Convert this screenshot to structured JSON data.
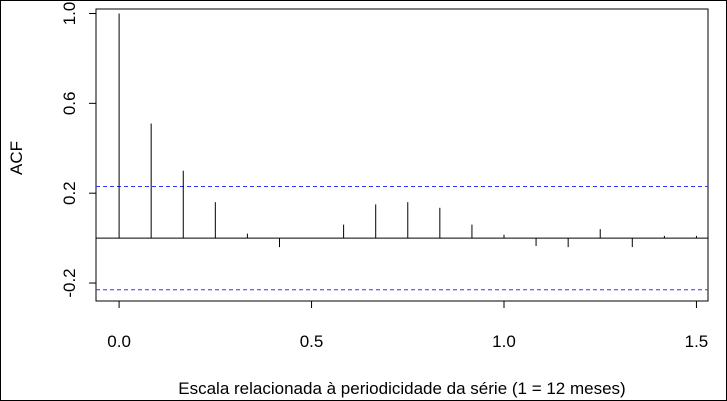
{
  "chart_data": {
    "type": "bar",
    "title": "",
    "xlabel": "Escala relacionada à periodicidade da série (1 = 12 meses)",
    "ylabel": "ACF",
    "xlim": [
      -0.06,
      1.53
    ],
    "ylim": [
      -0.28,
      1.02
    ],
    "x_ticks": [
      0.0,
      0.5,
      1.0,
      1.5
    ],
    "x_tick_labels": [
      "0.0",
      "0.5",
      "1.0",
      "1.5"
    ],
    "y_ticks": [
      -0.2,
      0.2,
      0.6,
      1.0
    ],
    "y_tick_labels": [
      "-0.2",
      "0.2",
      "0.6",
      "1.0"
    ],
    "confidence_bound": 0.23,
    "zero_line": true,
    "grid": false,
    "lags": [
      0.0,
      0.0833,
      0.1667,
      0.25,
      0.3333,
      0.4167,
      0.5,
      0.5833,
      0.6667,
      0.75,
      0.8333,
      0.9167,
      1.0,
      1.0833,
      1.1667,
      1.25,
      1.3333,
      1.4167,
      1.5
    ],
    "acf": [
      1.0,
      0.51,
      0.3,
      0.16,
      0.02,
      -0.04,
      0.0,
      0.06,
      0.15,
      0.16,
      0.135,
      0.06,
      0.015,
      -0.035,
      -0.04,
      0.04,
      -0.04,
      0.01,
      0.01
    ],
    "colors": {
      "bars": "#000000",
      "confidence": "#3333ff",
      "axes": "#000000"
    }
  }
}
